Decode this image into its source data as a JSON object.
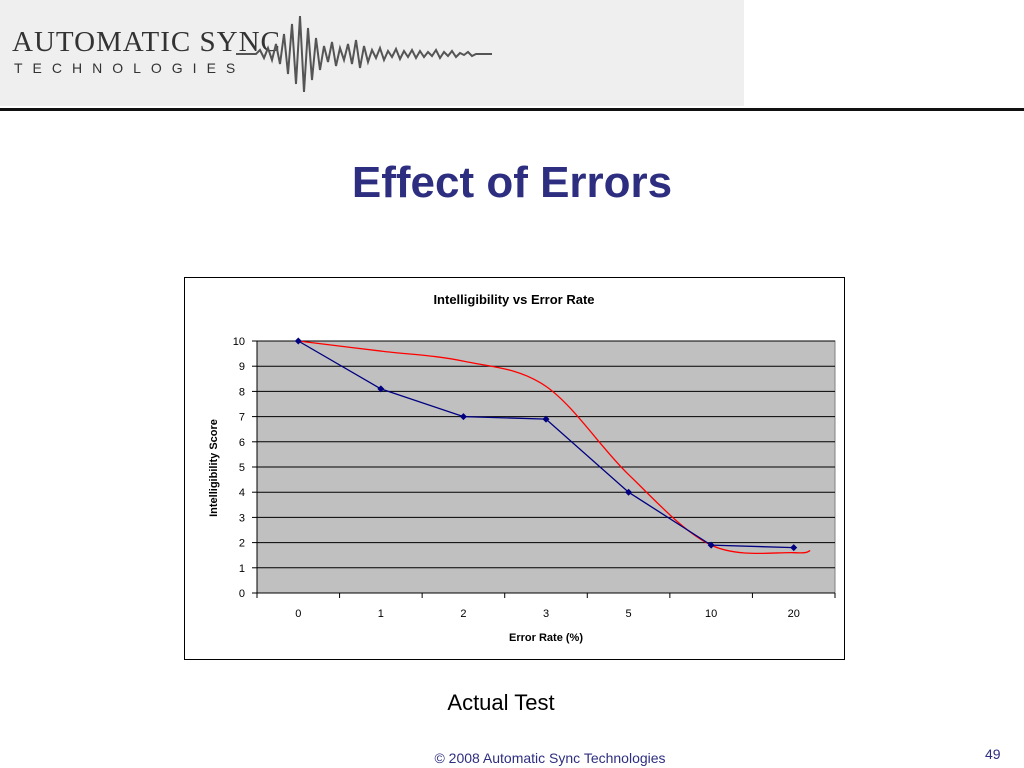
{
  "logo": {
    "line1": "AUTOMATIC SYNC",
    "line2": "TECHNOLOGIES"
  },
  "slide": {
    "title": "Effect of Errors",
    "caption": "Actual Test",
    "footer": "© 2008 Automatic Sync Technologies",
    "page_number": "49"
  },
  "colors": {
    "title": "#2e2e80",
    "plot_area": "#c0c0c0",
    "series_line": "#000080",
    "trend_line": "#ff0000"
  },
  "chart_data": {
    "type": "line",
    "title": "Intelligibility vs Error Rate",
    "xlabel": "Error Rate (%)",
    "ylabel": "Intelligibility Score",
    "categories": [
      "0",
      "1",
      "2",
      "3",
      "5",
      "10",
      "20"
    ],
    "series": [
      {
        "values": [
          10,
          8.1,
          7,
          6.9,
          4,
          1.9,
          1.8
        ]
      }
    ],
    "trendline": {
      "type": "smooth",
      "values": [
        10,
        9.6,
        9.2,
        8.2,
        4.7,
        1.9,
        1.6
      ]
    },
    "ylim": [
      0,
      10
    ],
    "yticks": [
      0,
      1,
      2,
      3,
      4,
      5,
      6,
      7,
      8,
      9,
      10
    ],
    "grid": true,
    "legend": "none"
  }
}
